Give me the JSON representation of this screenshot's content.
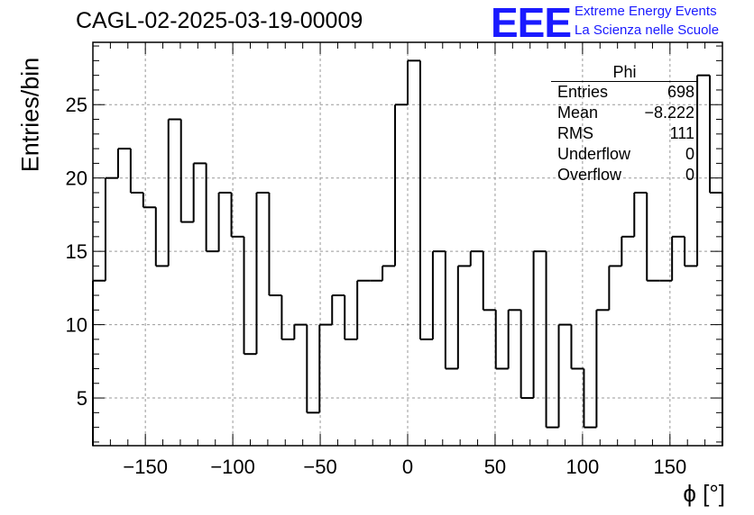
{
  "chart_data": {
    "type": "histogram",
    "title": "CAGL-02-2025-03-19-00009",
    "xlabel": "ϕ [°]",
    "ylabel": "Entries/bin",
    "xlim": [
      -180,
      180
    ],
    "ylim": [
      1.75,
      29.25
    ],
    "bin_width": 7.2,
    "grid": true,
    "x_ticks": [
      -150,
      -100,
      -50,
      0,
      50,
      100,
      150
    ],
    "x_tick_labels": [
      "−150",
      "−100",
      "−50",
      "0",
      "50",
      "100",
      "150"
    ],
    "y_ticks": [
      5,
      10,
      15,
      20,
      25
    ],
    "y_tick_labels": [
      "5",
      "10",
      "15",
      "20",
      "25"
    ],
    "values": [
      13,
      20,
      22,
      19,
      18,
      14,
      24,
      17,
      21,
      15,
      19,
      16,
      8,
      19,
      12,
      9,
      10,
      4,
      10,
      12,
      9,
      13,
      13,
      14,
      25,
      28,
      9,
      15,
      7,
      14,
      15,
      11,
      7,
      11,
      5,
      15,
      3,
      10,
      7,
      3,
      11,
      14,
      16,
      19,
      13,
      13,
      16,
      14,
      27,
      19
    ],
    "stats_box": {
      "name": "Phi",
      "rows": [
        {
          "label": "Entries",
          "value": "698"
        },
        {
          "label": "Mean",
          "value": "−8.222"
        },
        {
          "label": "RMS",
          "value": "111"
        },
        {
          "label": "Underflow",
          "value": "0"
        },
        {
          "label": "Overflow",
          "value": "0"
        }
      ]
    }
  },
  "logo": {
    "text": "EEE",
    "line1": "Extreme Energy Events",
    "line2": "La Scienza nelle Scuole"
  },
  "colors": {
    "line": "#000000",
    "grid": "#999999",
    "logo": "#1a1aff"
  }
}
